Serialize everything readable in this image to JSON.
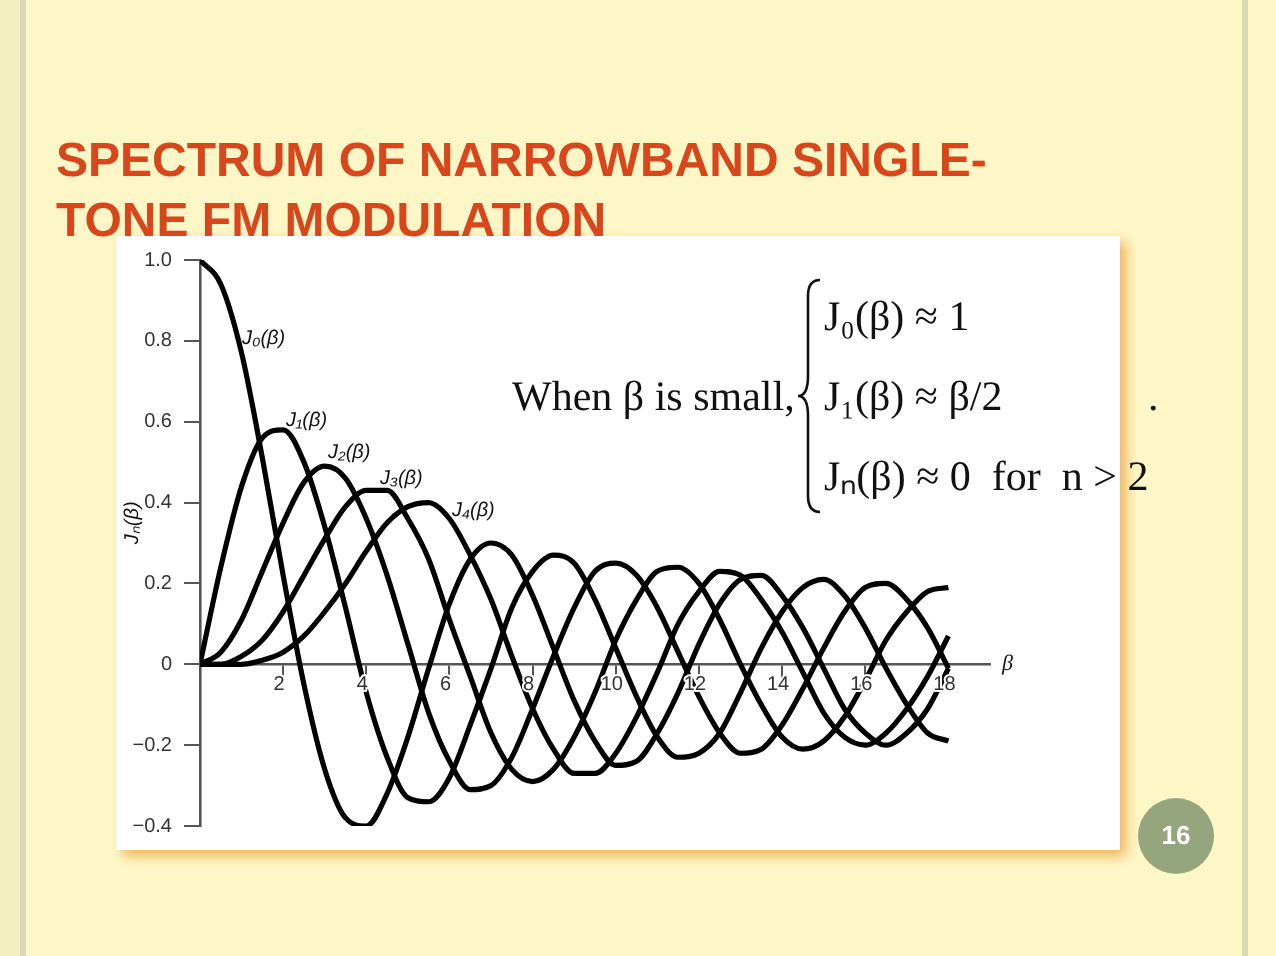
{
  "chart_data": {
    "type": "line",
    "title": "SPECTRUM OF NARROWBAND SINGLE-TONE FM MODULATION",
    "ylabel": "Jₙ(β)",
    "xlabel": "β",
    "x": [
      0,
      0.5,
      1,
      1.5,
      2,
      2.5,
      3,
      3.5,
      4,
      4.5,
      5,
      5.5,
      6,
      6.5,
      7,
      7.5,
      8,
      8.5,
      9,
      9.5,
      10,
      10.5,
      11,
      11.5,
      12,
      12.5,
      13,
      13.5,
      14,
      14.5,
      15,
      15.5,
      16,
      16.5,
      17,
      17.5,
      18
    ],
    "series": [
      {
        "color": "#000000",
        "values": [
          1,
          0.94,
          0.77,
          0.51,
          0.22,
          -0.05,
          -0.26,
          -0.38,
          -0.4,
          -0.32,
          -0.18,
          -0.01,
          0.15,
          0.26,
          0.3,
          0.27,
          0.17,
          0.04,
          -0.09,
          -0.19,
          -0.25,
          -0.24,
          -0.17,
          -0.07,
          0.05,
          0.15,
          0.21,
          0.22,
          0.17,
          0.09,
          -0.01,
          -0.11,
          -0.17,
          -0.2,
          -0.17,
          -0.11,
          -0.01
        ]
      },
      {
        "color": "#000000",
        "values": [
          0,
          0.24,
          0.44,
          0.56,
          0.58,
          0.5,
          0.34,
          0.14,
          -0.07,
          -0.23,
          -0.33,
          -0.34,
          -0.28,
          -0.15,
          -0.01,
          0.14,
          0.23,
          0.27,
          0.25,
          0.16,
          0.04,
          -0.08,
          -0.18,
          -0.23,
          -0.22,
          -0.17,
          -0.07,
          0.04,
          0.13,
          0.19,
          0.21,
          0.17,
          0.09,
          -0.01,
          -0.1,
          -0.17,
          -0.19
        ]
      },
      {
        "color": "#000000",
        "values": [
          0,
          0.03,
          0.11,
          0.23,
          0.35,
          0.45,
          0.49,
          0.46,
          0.36,
          0.22,
          0.05,
          -0.12,
          -0.24,
          -0.31,
          -0.3,
          -0.23,
          -0.11,
          0.02,
          0.14,
          0.23,
          0.25,
          0.22,
          0.14,
          0.03,
          -0.08,
          -0.17,
          -0.22,
          -0.21,
          -0.15,
          -0.06,
          0.04,
          0.13,
          0.19,
          0.2,
          0.16,
          0.09,
          -0.01
        ]
      },
      {
        "color": "#000000",
        "values": [
          0,
          0,
          0.02,
          0.06,
          0.13,
          0.22,
          0.31,
          0.39,
          0.43,
          0.43,
          0.36,
          0.26,
          0.11,
          -0.03,
          -0.17,
          -0.26,
          -0.29,
          -0.26,
          -0.18,
          -0.07,
          0.06,
          0.16,
          0.23,
          0.24,
          0.2,
          0.11,
          0,
          -0.1,
          -0.18,
          -0.21,
          -0.19,
          -0.13,
          -0.04,
          0.06,
          0.13,
          0.18,
          0.19
        ]
      },
      {
        "color": "#000000",
        "values": [
          0,
          0,
          0,
          0.01,
          0.03,
          0.07,
          0.13,
          0.2,
          0.28,
          0.35,
          0.39,
          0.4,
          0.36,
          0.27,
          0.16,
          0.02,
          -0.11,
          -0.21,
          -0.27,
          -0.27,
          -0.22,
          -0.13,
          -0.02,
          0.1,
          0.18,
          0.23,
          0.22,
          0.16,
          0.08,
          -0.02,
          -0.12,
          -0.18,
          -0.2,
          -0.17,
          -0.11,
          -0.03,
          0.07
        ]
      }
    ],
    "xlim": [
      0,
      19
    ],
    "xticks": [
      2,
      4,
      6,
      8,
      10,
      12,
      14,
      16,
      18
    ],
    "ylim": [
      -0.4,
      1
    ],
    "yticks": [
      {
        "value": 1,
        "label": "1.0"
      },
      0.8,
      0.6,
      0.4,
      0.2,
      0,
      {
        "value": -0.2,
        "label": "−0.2"
      },
      {
        "value": -0.4,
        "label": "−0.4"
      }
    ],
    "grid": false,
    "legend": false,
    "marker": "none",
    "line_style": "solid",
    "annotations": [
      "J₀(β)",
      "J₁(β)",
      "J₂(β)",
      "J₃(β)",
      "J₄(β)",
      "When β is small,",
      "J₀(β) ≈ 1",
      "J₁(β) ≈ β/2",
      "Jₙ(β) ≈ 0  for  n > 2",
      ".",
      "16"
    ]
  }
}
